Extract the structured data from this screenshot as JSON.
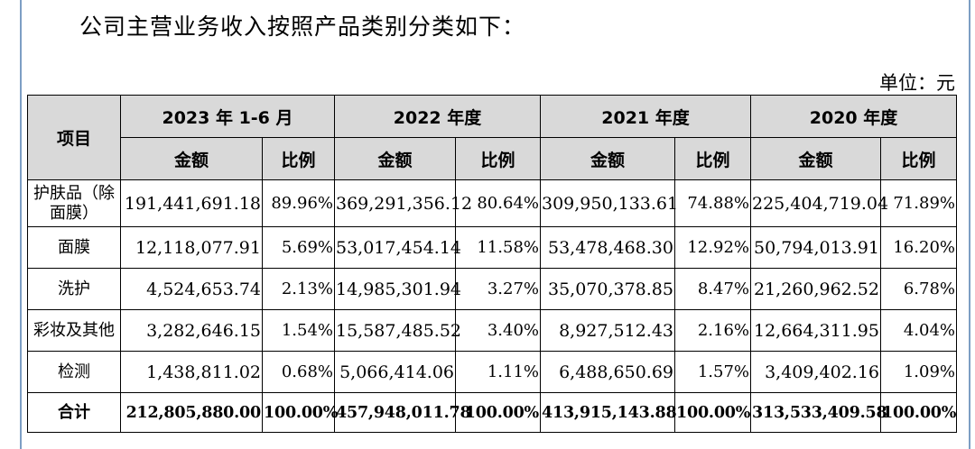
{
  "intro": "公司主营业务收入按照产品类别分类如下：",
  "unit": "单位：元",
  "table": {
    "item_header": "项目",
    "periods": [
      "2023 年 1-6 月",
      "2022 年度",
      "2021 年度",
      "2020 年度"
    ],
    "sub_headers": {
      "amount": "金额",
      "ratio": "比例"
    },
    "rows": [
      {
        "category": "护肤品（除面膜）",
        "values": [
          "191,441,691.18",
          "89.96%",
          "369,291,356.12",
          "80.64%",
          "309,950,133.61",
          "74.88%",
          "225,404,719.04",
          "71.89%"
        ]
      },
      {
        "category": "面膜",
        "values": [
          "12,118,077.91",
          "5.69%",
          "53,017,454.14",
          "11.58%",
          "53,478,468.30",
          "12.92%",
          "50,794,013.91",
          "16.20%"
        ]
      },
      {
        "category": "洗护",
        "values": [
          "4,524,653.74",
          "2.13%",
          "14,985,301.94",
          "3.27%",
          "35,070,378.85",
          "8.47%",
          "21,260,962.52",
          "6.78%"
        ]
      },
      {
        "category": "彩妆及其他",
        "values": [
          "3,282,646.15",
          "1.54%",
          "15,587,485.52",
          "3.40%",
          "8,927,512.43",
          "2.16%",
          "12,664,311.95",
          "4.04%"
        ]
      },
      {
        "category": "检测",
        "values": [
          "1,438,811.02",
          "0.68%",
          "5,066,414.06",
          "1.11%",
          "6,488,650.69",
          "1.57%",
          "3,409,402.16",
          "1.09%"
        ]
      }
    ],
    "total": {
      "category": "合计",
      "values": [
        "212,805,880.00",
        "100.00%",
        "457,948,011.78",
        "100.00%",
        "413,915,143.88",
        "100.00%",
        "313,533,409.58",
        "100.00%"
      ]
    }
  }
}
